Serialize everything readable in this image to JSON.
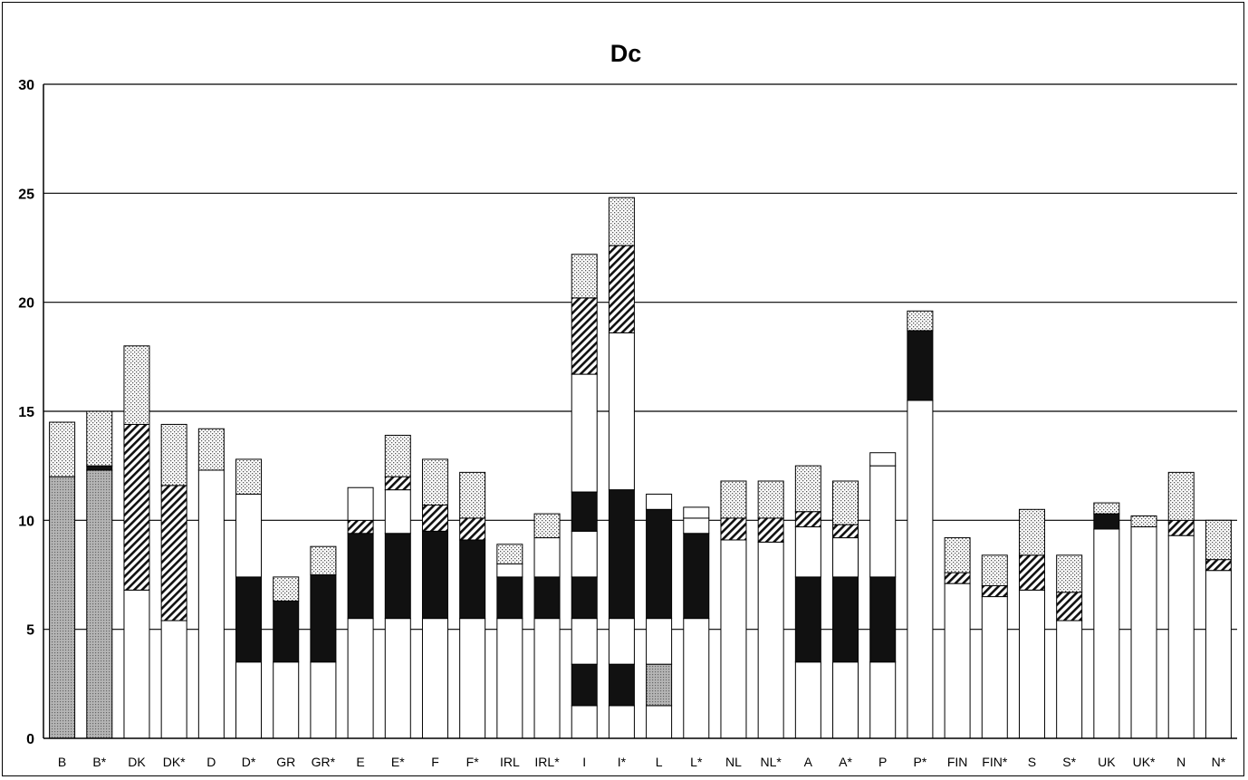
{
  "chart_data": {
    "type": "bar",
    "stacked": true,
    "title": "Dc",
    "xlabel": "",
    "ylabel": "",
    "ylim": [
      0,
      30
    ],
    "yticks": [
      0,
      5,
      10,
      15,
      20,
      25,
      30
    ],
    "grid": true,
    "legend": "none",
    "categories": [
      "B",
      "B*",
      "DK",
      "DK*",
      "D",
      "D*",
      "GR",
      "GR*",
      "E",
      "E*",
      "F",
      "F*",
      "IRL",
      "IRL*",
      "I",
      "I*",
      "L",
      "L*",
      "NL",
      "NL*",
      "A",
      "A*",
      "P",
      "P*",
      "FIN",
      "FIN*",
      "S",
      "S*",
      "UK",
      "UK*",
      "N",
      "N*"
    ],
    "segments": [
      [
        {
          "to": 12,
          "fill": "grey"
        },
        {
          "to": 14.5,
          "fill": "dots"
        }
      ],
      [
        {
          "to": 12.3,
          "fill": "grey"
        },
        {
          "to": 12.5,
          "fill": "dark"
        },
        {
          "to": 15,
          "fill": "dots"
        }
      ],
      [
        {
          "to": 6.8,
          "fill": "white"
        },
        {
          "to": 14.4,
          "fill": "hatch"
        },
        {
          "to": 18,
          "fill": "dots"
        }
      ],
      [
        {
          "to": 5.4,
          "fill": "white"
        },
        {
          "to": 11.6,
          "fill": "hatch"
        },
        {
          "to": 14.4,
          "fill": "dots"
        }
      ],
      [
        {
          "to": 12.3,
          "fill": "white"
        },
        {
          "to": 14.2,
          "fill": "dots"
        }
      ],
      [
        {
          "to": 3.5,
          "fill": "white"
        },
        {
          "to": 7.4,
          "fill": "dark"
        },
        {
          "to": 11.2,
          "fill": "white"
        },
        {
          "to": 12.8,
          "fill": "dots"
        }
      ],
      [
        {
          "to": 3.5,
          "fill": "white"
        },
        {
          "to": 6.3,
          "fill": "dark"
        },
        {
          "to": 7.4,
          "fill": "dots"
        }
      ],
      [
        {
          "to": 3.5,
          "fill": "white"
        },
        {
          "to": 7.5,
          "fill": "dark"
        },
        {
          "to": 8.8,
          "fill": "dots"
        }
      ],
      [
        {
          "to": 5.5,
          "fill": "white"
        },
        {
          "to": 9.4,
          "fill": "dark"
        },
        {
          "to": 10,
          "fill": "hatch"
        },
        {
          "to": 11.5,
          "fill": "white"
        }
      ],
      [
        {
          "to": 5.5,
          "fill": "white"
        },
        {
          "to": 9.4,
          "fill": "dark"
        },
        {
          "to": 11.4,
          "fill": "white"
        },
        {
          "to": 12,
          "fill": "hatch"
        },
        {
          "to": 13.9,
          "fill": "dots"
        }
      ],
      [
        {
          "to": 5.5,
          "fill": "white"
        },
        {
          "to": 9.5,
          "fill": "dark"
        },
        {
          "to": 10.7,
          "fill": "hatch"
        },
        {
          "to": 12.8,
          "fill": "dots"
        }
      ],
      [
        {
          "to": 5.5,
          "fill": "white"
        },
        {
          "to": 9.1,
          "fill": "dark"
        },
        {
          "to": 10.1,
          "fill": "hatch"
        },
        {
          "to": 12.2,
          "fill": "dots"
        }
      ],
      [
        {
          "to": 5.5,
          "fill": "white"
        },
        {
          "to": 7.4,
          "fill": "dark"
        },
        {
          "to": 8,
          "fill": "white"
        },
        {
          "to": 8.9,
          "fill": "dots"
        }
      ],
      [
        {
          "to": 5.5,
          "fill": "white"
        },
        {
          "to": 7.4,
          "fill": "dark"
        },
        {
          "to": 9.2,
          "fill": "white"
        },
        {
          "to": 10.3,
          "fill": "dots"
        }
      ],
      [
        {
          "to": 1.5,
          "fill": "white"
        },
        {
          "to": 3.4,
          "fill": "dark"
        },
        {
          "to": 5.5,
          "fill": "white"
        },
        {
          "to": 7.4,
          "fill": "dark"
        },
        {
          "to": 9.5,
          "fill": "white"
        },
        {
          "to": 11.3,
          "fill": "dark"
        },
        {
          "to": 16.7,
          "fill": "white"
        },
        {
          "to": 20.2,
          "fill": "hatch"
        },
        {
          "to": 22.2,
          "fill": "dots"
        }
      ],
      [
        {
          "to": 1.5,
          "fill": "white"
        },
        {
          "to": 3.4,
          "fill": "dark"
        },
        {
          "to": 5.5,
          "fill": "white"
        },
        {
          "to": 11.4,
          "fill": "dark"
        },
        {
          "to": 18.6,
          "fill": "white"
        },
        {
          "to": 22.6,
          "fill": "hatch"
        },
        {
          "to": 24.8,
          "fill": "dots"
        }
      ],
      [
        {
          "to": 1.5,
          "fill": "white"
        },
        {
          "to": 3.4,
          "fill": "grey"
        },
        {
          "to": 5.5,
          "fill": "white"
        },
        {
          "to": 10.5,
          "fill": "dark"
        },
        {
          "to": 11.2,
          "fill": "white"
        }
      ],
      [
        {
          "to": 5.5,
          "fill": "white"
        },
        {
          "to": 9.4,
          "fill": "dark"
        },
        {
          "to": 10.1,
          "fill": "white"
        },
        {
          "to": 10.6,
          "fill": "white"
        }
      ],
      [
        {
          "to": 9.1,
          "fill": "white"
        },
        {
          "to": 10.1,
          "fill": "hatch"
        },
        {
          "to": 11.8,
          "fill": "dots"
        }
      ],
      [
        {
          "to": 9.0,
          "fill": "white"
        },
        {
          "to": 10.1,
          "fill": "hatch"
        },
        {
          "to": 11.8,
          "fill": "dots"
        }
      ],
      [
        {
          "to": 3.5,
          "fill": "white"
        },
        {
          "to": 7.4,
          "fill": "dark"
        },
        {
          "to": 9.7,
          "fill": "white"
        },
        {
          "to": 10.4,
          "fill": "hatch"
        },
        {
          "to": 12.5,
          "fill": "dots"
        }
      ],
      [
        {
          "to": 3.5,
          "fill": "white"
        },
        {
          "to": 7.4,
          "fill": "dark"
        },
        {
          "to": 9.2,
          "fill": "white"
        },
        {
          "to": 9.8,
          "fill": "hatch"
        },
        {
          "to": 11.8,
          "fill": "dots"
        }
      ],
      [
        {
          "to": 3.5,
          "fill": "white"
        },
        {
          "to": 7.4,
          "fill": "dark"
        },
        {
          "to": 12.5,
          "fill": "white"
        },
        {
          "to": 13.1,
          "fill": "white"
        }
      ],
      [
        {
          "to": 15.5,
          "fill": "white"
        },
        {
          "to": 18.7,
          "fill": "dark"
        },
        {
          "to": 19.6,
          "fill": "dots"
        }
      ],
      [
        {
          "to": 7.1,
          "fill": "white"
        },
        {
          "to": 7.6,
          "fill": "hatch"
        },
        {
          "to": 9.2,
          "fill": "dots"
        }
      ],
      [
        {
          "to": 6.5,
          "fill": "white"
        },
        {
          "to": 7.0,
          "fill": "hatch"
        },
        {
          "to": 8.4,
          "fill": "dots"
        }
      ],
      [
        {
          "to": 6.8,
          "fill": "white"
        },
        {
          "to": 8.4,
          "fill": "hatch"
        },
        {
          "to": 10.5,
          "fill": "dots"
        }
      ],
      [
        {
          "to": 5.4,
          "fill": "white"
        },
        {
          "to": 6.7,
          "fill": "hatch"
        },
        {
          "to": 8.4,
          "fill": "dots"
        }
      ],
      [
        {
          "to": 9.6,
          "fill": "white"
        },
        {
          "to": 10.3,
          "fill": "dark"
        },
        {
          "to": 10.8,
          "fill": "dots"
        }
      ],
      [
        {
          "to": 9.7,
          "fill": "white"
        },
        {
          "to": 10.2,
          "fill": "dots"
        }
      ],
      [
        {
          "to": 9.3,
          "fill": "white"
        },
        {
          "to": 10,
          "fill": "hatch"
        },
        {
          "to": 12.2,
          "fill": "dots"
        }
      ],
      [
        {
          "to": 7.7,
          "fill": "white"
        },
        {
          "to": 8.2,
          "fill": "hatch"
        },
        {
          "to": 10,
          "fill": "dots"
        }
      ]
    ]
  }
}
